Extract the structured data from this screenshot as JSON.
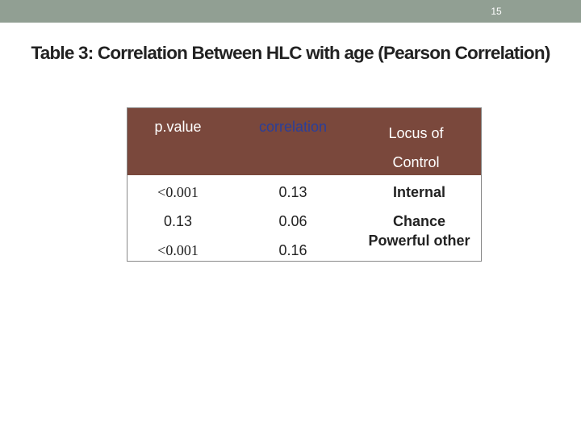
{
  "header": {
    "page_number": "15"
  },
  "title": "Table 3: Correlation Between HLC with age (Pearson Correlation)",
  "table": {
    "columns": [
      "p.value",
      "correlation",
      "Locus of Control"
    ],
    "rows": [
      [
        "<0.001",
        "0.13",
        "Internal"
      ],
      [
        "0.13",
        "0.06",
        "Chance"
      ],
      [
        "<0.001",
        "0.16",
        "Powerful other"
      ]
    ]
  }
}
